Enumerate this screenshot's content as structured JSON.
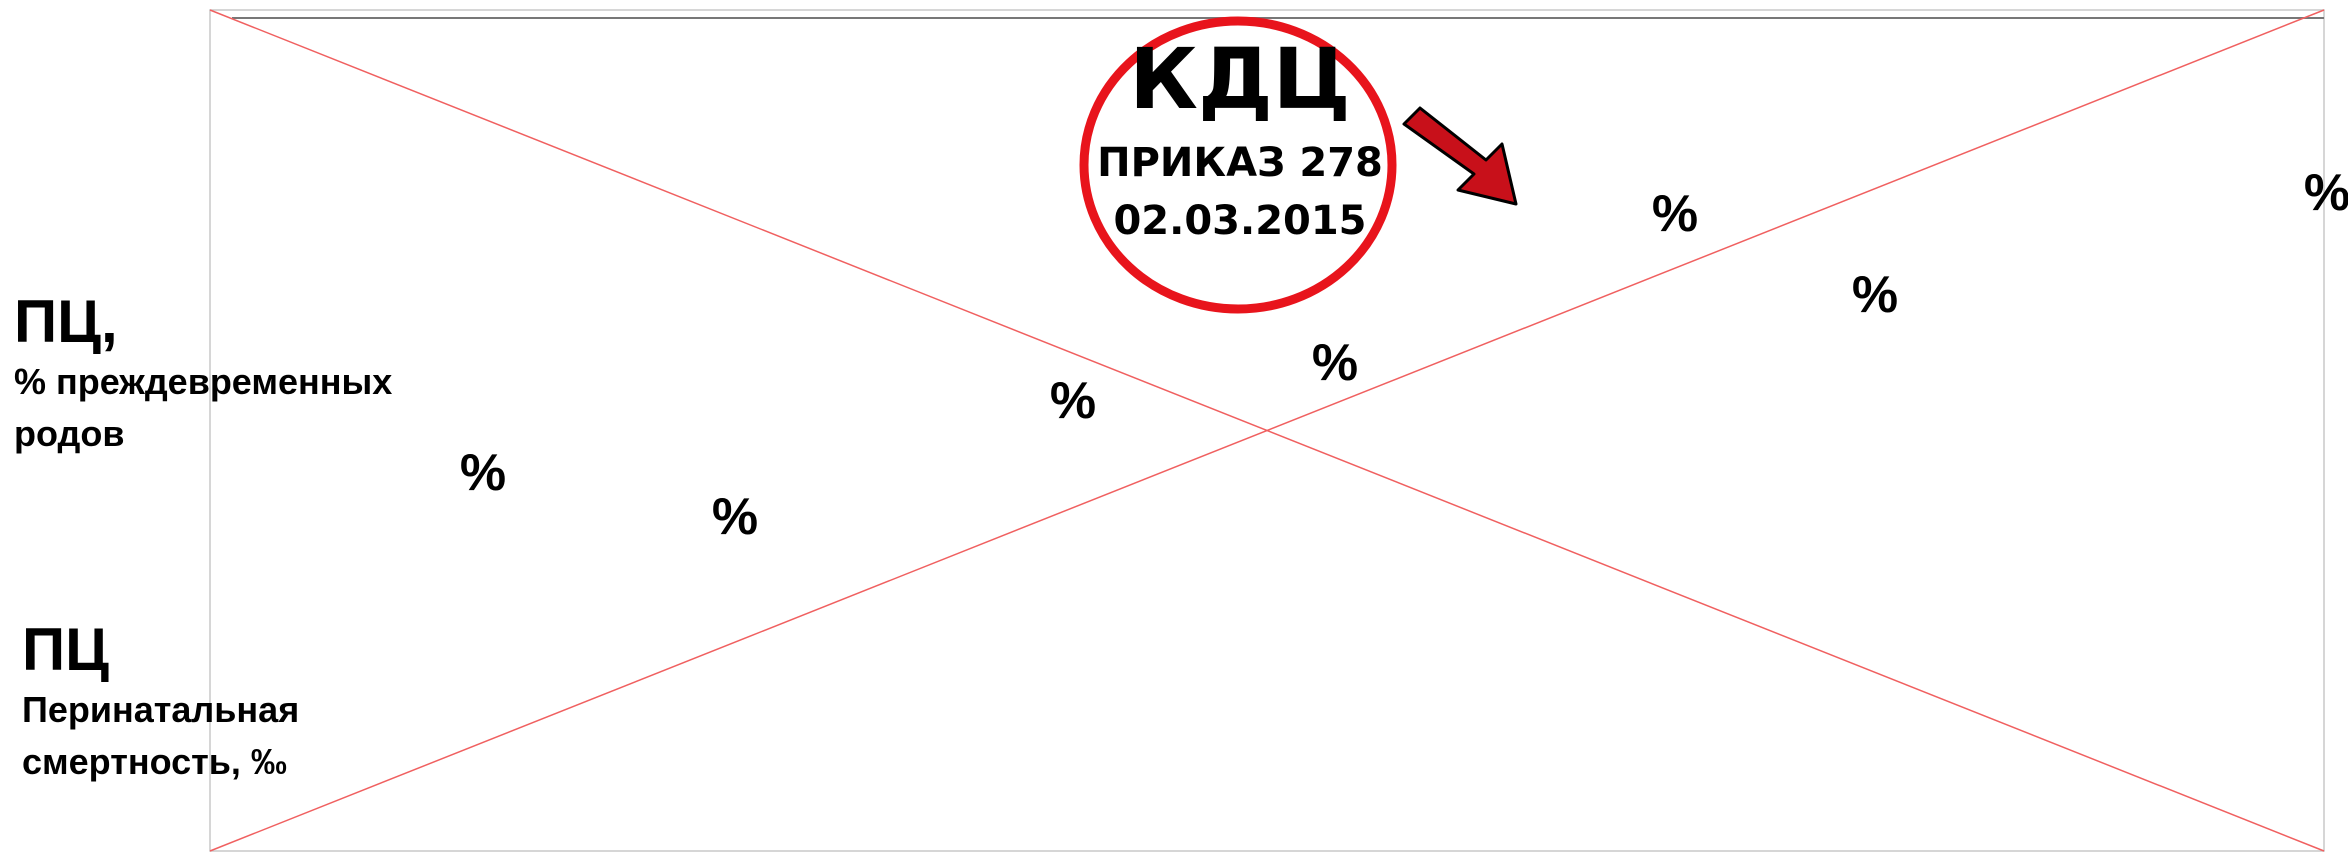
{
  "badge": {
    "title": "КДЦ",
    "order": "ПРИКАЗ 278",
    "date": "02.03.2015"
  },
  "legend": [
    {
      "title": "ПЦ,",
      "lines": [
        "% преждевременных",
        "родов"
      ]
    },
    {
      "title": "ПЦ",
      "lines": [
        "Перинатальная",
        "смертность, ‰"
      ]
    }
  ],
  "markers": [
    "%",
    "%",
    "%",
    "%",
    "%",
    "%",
    "%"
  ]
}
